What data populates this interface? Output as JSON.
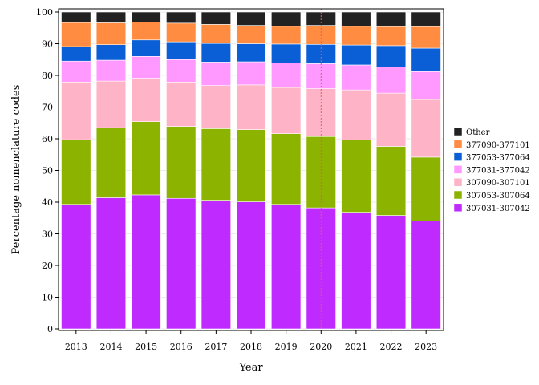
{
  "chart_data": {
    "type": "bar",
    "stacked": true,
    "xlabel": "Year",
    "ylabel": "Percentage nomenclature codes",
    "ylim": [
      0,
      100
    ],
    "yticks": [
      0,
      10,
      20,
      30,
      40,
      50,
      60,
      70,
      80,
      90,
      100
    ],
    "grid": true,
    "legend_position": "right",
    "categories": [
      "2013",
      "2014",
      "2015",
      "2016",
      "2017",
      "2018",
      "2019",
      "2020",
      "2021",
      "2022",
      "2023"
    ],
    "reference_line_x": "2020",
    "reference_line_color": "#cc6666",
    "series": [
      {
        "name": "307031-307042",
        "color": "#bf2aff",
        "values": [
          39.3,
          41.4,
          42.3,
          41.2,
          40.6,
          40.1,
          39.3,
          38.2,
          36.8,
          35.8,
          34.0
        ]
      },
      {
        "name": "307053-307064",
        "color": "#8bb300",
        "values": [
          20.4,
          22.1,
          23.1,
          22.7,
          22.6,
          22.8,
          22.3,
          22.5,
          22.8,
          21.8,
          20.2
        ]
      },
      {
        "name": "307090-307101",
        "color": "#ffb3c7",
        "values": [
          18.2,
          14.7,
          13.7,
          14.0,
          13.6,
          14.1,
          14.6,
          15.1,
          15.8,
          16.8,
          18.2
        ]
      },
      {
        "name": "377031-377042",
        "color": "#ff99ff",
        "values": [
          6.6,
          6.6,
          6.9,
          7.1,
          7.4,
          7.3,
          7.7,
          7.9,
          7.9,
          8.2,
          8.8
        ]
      },
      {
        "name": "377053-377064",
        "color": "#0b5fd6",
        "values": [
          4.6,
          4.9,
          5.2,
          5.6,
          5.9,
          5.7,
          6.0,
          6.1,
          6.3,
          6.8,
          7.4
        ]
      },
      {
        "name": "377090-377101",
        "color": "#ff8c40",
        "values": [
          7.6,
          6.9,
          5.6,
          5.9,
          6.0,
          5.8,
          5.6,
          6.0,
          5.9,
          6.0,
          6.8
        ]
      },
      {
        "name": "Other",
        "color": "#222222",
        "values": [
          3.3,
          3.4,
          3.2,
          3.5,
          3.9,
          4.2,
          4.5,
          4.2,
          4.5,
          4.6,
          4.6
        ]
      }
    ]
  }
}
